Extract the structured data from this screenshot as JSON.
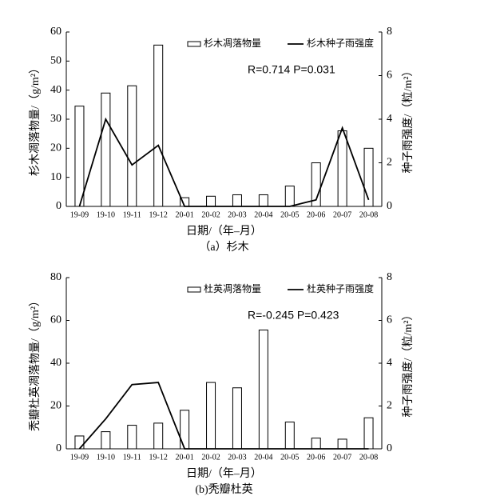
{
  "chart_data": [
    {
      "type": "bar",
      "caption": "（a）杉木",
      "xlabel": "日期/（年–月）",
      "ylabel": "杉木凋落物量/（g/m²）",
      "y2label": "种子雨强度/（粒/m²）",
      "annotation": "R=0.714  P=0.031",
      "legend": "upper right",
      "categories": [
        "19-09",
        "19-10",
        "19-11",
        "19-12",
        "20-01",
        "20-02",
        "20-03",
        "20-04",
        "20-05",
        "20-06",
        "20-07",
        "20-08"
      ],
      "ylim": [
        0,
        60
      ],
      "yticks": [
        0,
        10,
        20,
        30,
        40,
        50,
        60
      ],
      "y2lim": [
        0,
        8
      ],
      "y2ticks": [
        0,
        2,
        4,
        6,
        8
      ],
      "series": [
        {
          "name": "杉木凋落物量",
          "type": "bar",
          "color": "#ffffff",
          "values": [
            34.5,
            39,
            41.5,
            55.5,
            3,
            3.5,
            4,
            4,
            7,
            15,
            26,
            20
          ]
        },
        {
          "name": "杉木种子雨强度",
          "type": "line",
          "axis": "y2",
          "color": "#000000",
          "values": [
            0,
            4.0,
            1.9,
            2.8,
            0,
            0,
            0,
            0,
            0,
            0.3,
            3.6,
            0.3
          ]
        }
      ]
    },
    {
      "type": "bar",
      "caption": "(b)秃瓣杜英",
      "xlabel": "日期/（年–月）",
      "ylabel": "秃瓣杜英凋落物量/（g/m²）",
      "y2label": "种子雨强度/（粒/m²）",
      "annotation": "R=-0.245  P=0.423",
      "legend": "upper right",
      "categories": [
        "19-09",
        "19-10",
        "19-11",
        "19-12",
        "20-01",
        "20-02",
        "20-03",
        "20-04",
        "20-05",
        "20-06",
        "20-07",
        "20-08"
      ],
      "ylim": [
        0,
        80
      ],
      "yticks": [
        0,
        20,
        40,
        60,
        80
      ],
      "y2lim": [
        0,
        8
      ],
      "y2ticks": [
        0,
        2,
        4,
        6,
        8
      ],
      "series": [
        {
          "name": "杜英凋落物量",
          "type": "bar",
          "color": "#ffffff",
          "values": [
            6,
            8,
            11,
            12,
            18,
            31,
            28.5,
            55.5,
            12.5,
            5,
            4.5,
            14.5
          ]
        },
        {
          "name": "杜英种子雨强度",
          "type": "line",
          "axis": "y2",
          "color": "#000000",
          "values": [
            0,
            1.4,
            3.0,
            3.1,
            0,
            0,
            0,
            0,
            0,
            0,
            0,
            0
          ]
        }
      ]
    }
  ]
}
